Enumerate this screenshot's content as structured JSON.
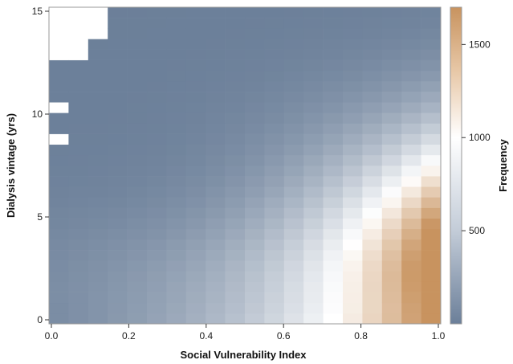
{
  "chart_data": {
    "type": "heatmap",
    "xlabel": "Social Vulnerability Index",
    "ylabel": "Dialysis vintage (yrs)",
    "colorbar_label": "Frequency",
    "x_ticks": [
      "0.0",
      "0.2",
      "0.4",
      "0.6",
      "0.8",
      "1.0"
    ],
    "y_ticks": [
      "0",
      "5",
      "10",
      "15"
    ],
    "colorbar_ticks": [
      "500",
      "1000",
      "1500"
    ],
    "xlim": [
      0,
      1
    ],
    "ylim": [
      0,
      15
    ],
    "color_range": [
      0,
      1700
    ],
    "colors": {
      "low": "#6b7f99",
      "mid": "#ffffff",
      "high": "#c8935f"
    },
    "x_bins": 20,
    "y_bins": 30,
    "bin_width": 0.05,
    "bin_height": 0.5,
    "missing_cells": [
      [
        0,
        29
      ],
      [
        1,
        29
      ],
      [
        2,
        29
      ],
      [
        0,
        28
      ],
      [
        1,
        28
      ],
      [
        2,
        28
      ],
      [
        0,
        27
      ],
      [
        1,
        27
      ],
      [
        2,
        27
      ],
      [
        0,
        26
      ],
      [
        1,
        26
      ],
      [
        0,
        25
      ],
      [
        1,
        25
      ],
      [
        0,
        20
      ],
      [
        0,
        17
      ]
    ],
    "description_note": "",
    "values_fn": "Frequency counts per (SVI bin, vintage bin); high at large SVI and low vintage"
  }
}
